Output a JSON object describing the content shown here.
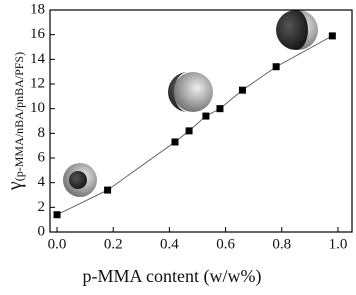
{
  "chart_data": {
    "type": "line",
    "xlabel": "p-MMA content (w/w%)",
    "ylabel": "γ",
    "ylabel_subscript": "(p-MMA/nBA/pnBA/PFS)",
    "x": [
      0,
      0.18,
      0.42,
      0.47,
      0.53,
      0.58,
      0.66,
      0.78,
      0.98
    ],
    "series": [
      {
        "color": "#000000",
        "values": [
          1.4,
          3.4,
          7.3,
          8.2,
          9.4,
          10.0,
          11.5,
          13.4,
          15.9
        ]
      }
    ],
    "xlim": [
      -0.025,
      1.05
    ],
    "xticks": [
      {
        "value": 0,
        "label": "0.0"
      },
      {
        "value": 0.2,
        "label": "0.2"
      },
      {
        "value": 0.4,
        "label": "0.4"
      },
      {
        "value": 0.6,
        "label": "0.6"
      },
      {
        "value": 0.8,
        "label": "0.8"
      },
      {
        "value": 1.0,
        "label": "1.0"
      }
    ],
    "ylim": [
      0,
      18
    ],
    "yticks": [
      0,
      2,
      4,
      6,
      8,
      10,
      12,
      14,
      16,
      18
    ]
  }
}
